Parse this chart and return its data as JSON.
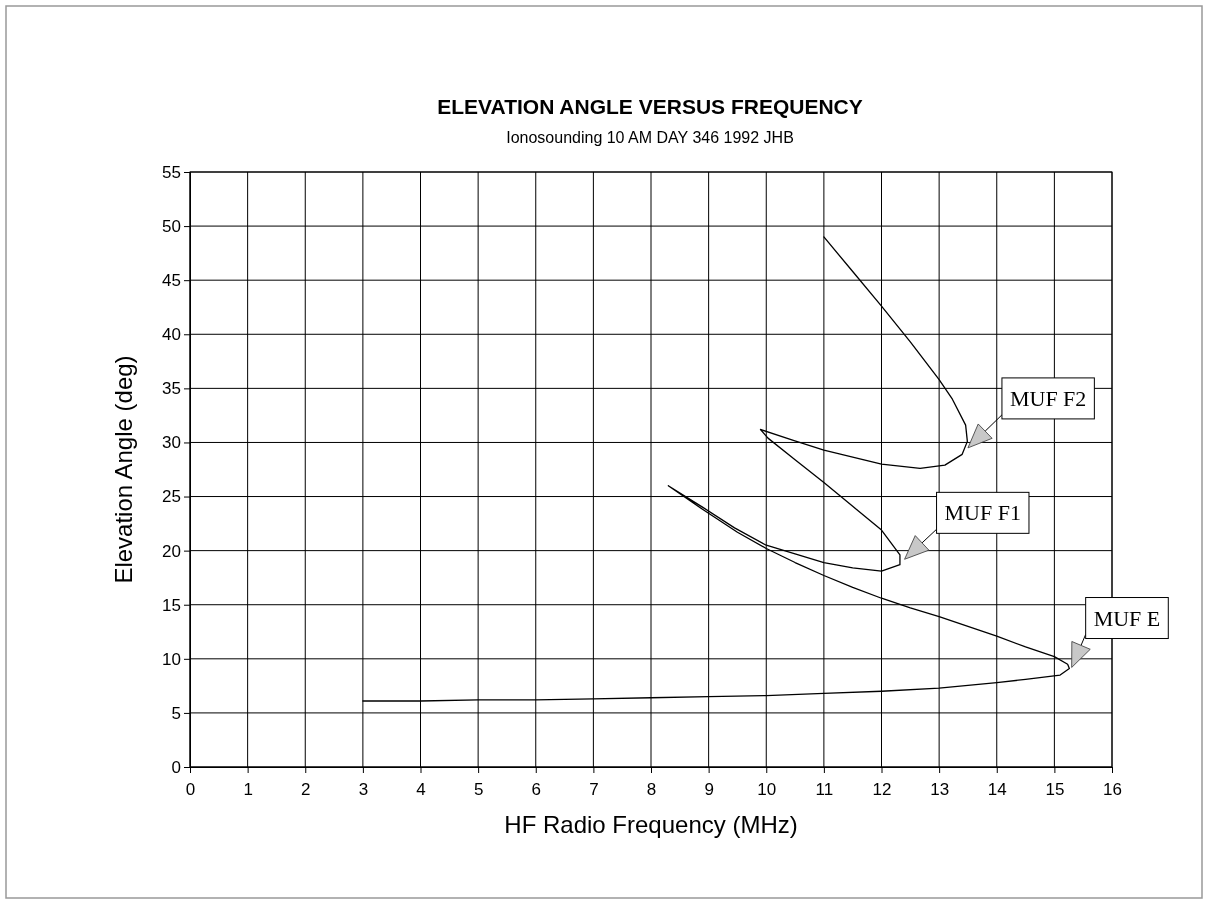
{
  "chart_data": {
    "type": "line",
    "title": "ELEVATION ANGLE VERSUS FREQUENCY",
    "subtitle": "Ionosounding 10 AM DAY 346 1992 JHB",
    "xlabel": "HF Radio Frequency (MHz)",
    "ylabel": "Elevation Angle (deg)",
    "xlim": [
      0,
      16
    ],
    "xticks": [
      0,
      1,
      2,
      3,
      4,
      5,
      6,
      7,
      8,
      9,
      10,
      11,
      12,
      13,
      14,
      15,
      16
    ],
    "ylim": [
      0,
      55
    ],
    "yticks": [
      0,
      5,
      10,
      15,
      20,
      25,
      30,
      35,
      40,
      45,
      50,
      55
    ],
    "grid": true,
    "marker": "none",
    "line_style": "solid",
    "series": [
      {
        "color": "#000000",
        "x": [
          11,
          11.5,
          12,
          12.5,
          13,
          13.23,
          13.46,
          13.49,
          13.4,
          13.1,
          12.67,
          12,
          11,
          10.47,
          9.9,
          10.03,
          10.5,
          11,
          11.5,
          12,
          12.32,
          12.32,
          12,
          11.5,
          11,
          10.5,
          10,
          9.45,
          8.9,
          8.3,
          8.9,
          9.5,
          10,
          10.5,
          11,
          11.5,
          12,
          12.5,
          13,
          13.5,
          14,
          14.5,
          15,
          15.23,
          15.26,
          15.1,
          14.5,
          14,
          13,
          12,
          11,
          10,
          9,
          8,
          7,
          6,
          5,
          4,
          3
        ],
        "values": [
          49,
          45.8,
          42.6,
          39.3,
          35.8,
          34,
          31.6,
          30.1,
          28.9,
          27.9,
          27.6,
          28,
          29.3,
          30.2,
          31.2,
          30.4,
          28.4,
          26.3,
          24.1,
          21.9,
          19.6,
          18.7,
          18.1,
          18.4,
          18.9,
          19.7,
          20.5,
          22.1,
          24,
          26,
          23.8,
          21.7,
          20.2,
          18.9,
          17.7,
          16.6,
          15.6,
          14.7,
          13.9,
          13,
          12.1,
          11.1,
          10.2,
          9.5,
          9.1,
          8.5,
          8.1,
          7.8,
          7.3,
          7,
          6.8,
          6.6,
          6.5,
          6.4,
          6.3,
          6.2,
          6.2,
          6.1,
          6.1
        ]
      }
    ],
    "annotations": [
      {
        "text": "MUF F2",
        "x": 13.5,
        "y": 29.5
      },
      {
        "text": "MUF F1",
        "x": 12.4,
        "y": 19.2
      },
      {
        "text": "MUF E",
        "x": 15.3,
        "y": 9.2
      }
    ]
  }
}
